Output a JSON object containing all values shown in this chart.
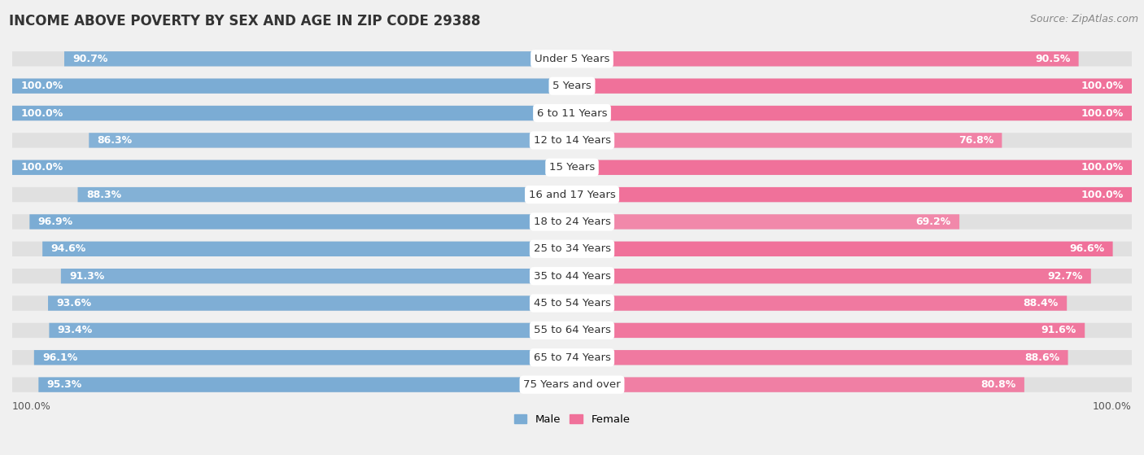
{
  "title": "INCOME ABOVE POVERTY BY SEX AND AGE IN ZIP CODE 29388",
  "source": "Source: ZipAtlas.com",
  "categories": [
    "Under 5 Years",
    "5 Years",
    "6 to 11 Years",
    "12 to 14 Years",
    "15 Years",
    "16 and 17 Years",
    "18 to 24 Years",
    "25 to 34 Years",
    "35 to 44 Years",
    "45 to 54 Years",
    "55 to 64 Years",
    "65 to 74 Years",
    "75 Years and over"
  ],
  "male_values": [
    90.7,
    100.0,
    100.0,
    86.3,
    100.0,
    88.3,
    96.9,
    94.6,
    91.3,
    93.6,
    93.4,
    96.1,
    95.3
  ],
  "female_values": [
    90.5,
    100.0,
    100.0,
    76.8,
    100.0,
    100.0,
    69.2,
    96.6,
    92.7,
    88.4,
    91.6,
    88.6,
    80.8
  ],
  "male_color": "#7bacd4",
  "male_color_light": "#c5d9ed",
  "female_color": "#f0719a",
  "female_color_light": "#f5bed0",
  "male_label": "Male",
  "female_label": "Female",
  "background_color": "#f0f0f0",
  "row_bg_color": "#e0e0e0",
  "title_fontsize": 12,
  "label_fontsize": 9.5,
  "value_fontsize": 9,
  "source_fontsize": 9
}
